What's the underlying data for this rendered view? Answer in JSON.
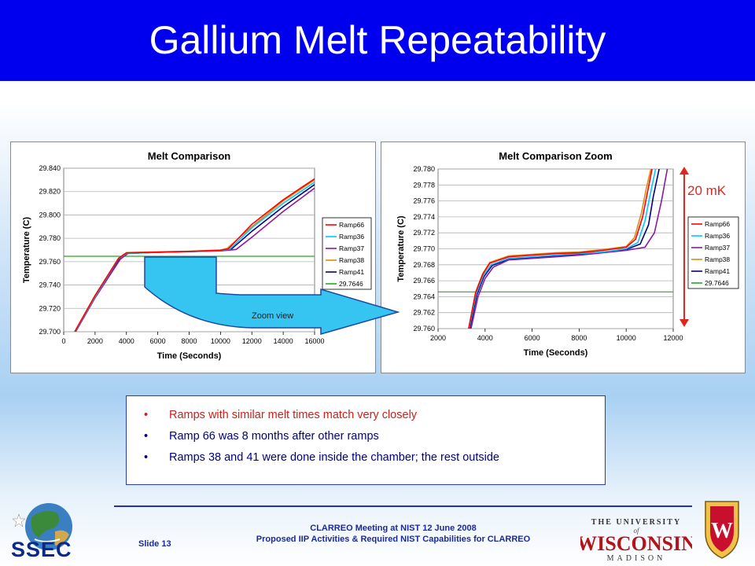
{
  "slide": {
    "title": "Gallium Melt Repeatability",
    "annotation_range": "20 mK",
    "arrow_label": "Zoom view",
    "bullets": [
      "Ramps with similar melt times match very closely",
      "Ramp 66 was 8 months after other ramps",
      "Ramps 38 and 41 were done inside the chamber; the rest outside"
    ],
    "bullet_colors": [
      "#cc1f1a",
      "#000080",
      "#000080"
    ],
    "footer_line1": "CLARREO Meeting at NIST 12 June 2008",
    "footer_line2": "Proposed IIP Activities & Required NIST Capabilities for CLARREO",
    "slide_number": "Slide 13",
    "logo_left_text": "SSEC",
    "logo_right_line1": "THE UNIVERSITY",
    "logo_right_of": "of",
    "logo_right_line2": "WISCONSIN",
    "logo_right_line3": "MADISON",
    "crest_letter": "W"
  },
  "chart_data": [
    {
      "type": "line",
      "title": "Melt Comparison",
      "xlabel": "Time (Seconds)",
      "ylabel": "Temperature (C)",
      "xlim": [
        0,
        16000
      ],
      "ylim": [
        29.7,
        29.84
      ],
      "x_ticks": [
        "0",
        "2000",
        "4000",
        "6000",
        "8000",
        "10000",
        "12000",
        "14000",
        "16000"
      ],
      "y_ticks": [
        "29.840",
        "29.820",
        "29.800",
        "29.780",
        "29.760",
        "29.740",
        "29.720",
        "29.700"
      ],
      "grid": true,
      "legend_position": "right",
      "series": [
        {
          "name": "Ramp66",
          "color": "#ff0000",
          "x": [
            700,
            2000,
            3500,
            4000,
            6000,
            8000,
            10000,
            10500,
            12000,
            14000,
            16000
          ],
          "y": [
            29.7,
            29.731,
            29.763,
            29.7675,
            29.7682,
            29.7688,
            29.7698,
            29.771,
            29.792,
            29.813,
            29.831
          ]
        },
        {
          "name": "Ramp36",
          "color": "#00c8ff",
          "x": [
            720,
            2000,
            3500,
            4000,
            6000,
            8000,
            10000,
            10600,
            12000,
            14000,
            16000
          ],
          "y": [
            29.7,
            29.73,
            29.7625,
            29.767,
            29.768,
            29.7686,
            29.7695,
            29.7708,
            29.789,
            29.81,
            29.828
          ]
        },
        {
          "name": "Ramp37",
          "color": "#8b1a9c",
          "x": [
            760,
            2000,
            3600,
            4100,
            6000,
            8000,
            10000,
            11000,
            12000,
            14000,
            16000
          ],
          "y": [
            29.7,
            29.729,
            29.762,
            29.767,
            29.768,
            29.7685,
            29.7692,
            29.7705,
            29.781,
            29.803,
            29.823
          ]
        },
        {
          "name": "Ramp38",
          "color": "#e08a10",
          "x": [
            700,
            2000,
            3500,
            4000,
            6000,
            8000,
            10000,
            10400,
            12000,
            14000,
            16000
          ],
          "y": [
            29.7,
            29.731,
            29.763,
            29.7678,
            29.7684,
            29.769,
            29.77,
            29.7712,
            29.79,
            29.812,
            29.83
          ]
        },
        {
          "name": "Ramp41",
          "color": "#000080",
          "x": [
            740,
            2000,
            3550,
            4050,
            6000,
            8000,
            10000,
            10700,
            12000,
            14000,
            16000
          ],
          "y": [
            29.7,
            29.73,
            29.7625,
            29.7672,
            29.768,
            29.7687,
            29.7694,
            29.7708,
            29.786,
            29.807,
            29.826
          ]
        },
        {
          "name": "29.7646",
          "color": "#22aa22",
          "x": [
            0,
            16000
          ],
          "y": [
            29.7646,
            29.7646
          ]
        }
      ]
    },
    {
      "type": "line",
      "title": "Melt Comparison Zoom",
      "xlabel": "Time (Seconds)",
      "ylabel": "Temperature (C)",
      "xlim": [
        2000,
        12000
      ],
      "ylim": [
        29.76,
        29.78
      ],
      "x_ticks": [
        "2000",
        "4000",
        "6000",
        "8000",
        "10000",
        "12000"
      ],
      "y_ticks": [
        "29.780",
        "29.778",
        "29.776",
        "29.774",
        "29.772",
        "29.770",
        "29.768",
        "29.766",
        "29.764",
        "29.762",
        "29.760"
      ],
      "grid": true,
      "legend_position": "right",
      "series": [
        {
          "name": "Ramp66",
          "color": "#ff0000",
          "x": [
            3300,
            3600,
            3900,
            4200,
            5000,
            6000,
            7000,
            8000,
            9000,
            10000,
            10400,
            10700,
            10900,
            11100
          ],
          "y": [
            29.76,
            29.7645,
            29.7668,
            29.7682,
            29.769,
            29.7692,
            29.7694,
            29.7695,
            29.7698,
            29.7702,
            29.7712,
            29.774,
            29.777,
            29.78
          ]
        },
        {
          "name": "Ramp36",
          "color": "#00c8ff",
          "x": [
            3320,
            3620,
            3920,
            4250,
            5000,
            6000,
            7000,
            8000,
            9000,
            10000,
            10500,
            10800,
            11000,
            11250
          ],
          "y": [
            29.76,
            29.7643,
            29.7666,
            29.768,
            29.7688,
            29.769,
            29.7692,
            29.7694,
            29.7696,
            29.77,
            29.7708,
            29.7735,
            29.7765,
            29.78
          ]
        },
        {
          "name": "Ramp37",
          "color": "#8b1a9c",
          "x": [
            3400,
            3700,
            4000,
            4350,
            5000,
            6000,
            7000,
            8000,
            9000,
            10000,
            10800,
            11200,
            11500,
            11750
          ],
          "y": [
            29.76,
            29.764,
            29.7663,
            29.7677,
            29.7686,
            29.7688,
            29.769,
            29.7692,
            29.7695,
            29.7698,
            29.7702,
            29.772,
            29.776,
            29.78
          ]
        },
        {
          "name": "Ramp38",
          "color": "#e08a10",
          "x": [
            3300,
            3600,
            3900,
            4200,
            5000,
            6000,
            7000,
            8000,
            9000,
            10000,
            10350,
            10650,
            10850,
            11050
          ],
          "y": [
            29.76,
            29.7646,
            29.7669,
            29.7683,
            29.7691,
            29.7693,
            29.7695,
            29.7696,
            29.7699,
            29.7703,
            29.7714,
            29.7745,
            29.7775,
            29.78
          ]
        },
        {
          "name": "Ramp41",
          "color": "#000080",
          "x": [
            3350,
            3650,
            3950,
            4300,
            5000,
            6000,
            7000,
            8000,
            9000,
            10000,
            10600,
            10950,
            11150,
            11400
          ],
          "y": [
            29.76,
            29.7642,
            29.7665,
            29.7679,
            29.7687,
            29.7689,
            29.7691,
            29.7693,
            29.7696,
            29.7699,
            29.7706,
            29.773,
            29.7765,
            29.78
          ]
        },
        {
          "name": "29.7646",
          "color": "#22aa22",
          "x": [
            2000,
            12000
          ],
          "y": [
            29.7646,
            29.7646
          ]
        }
      ]
    }
  ]
}
